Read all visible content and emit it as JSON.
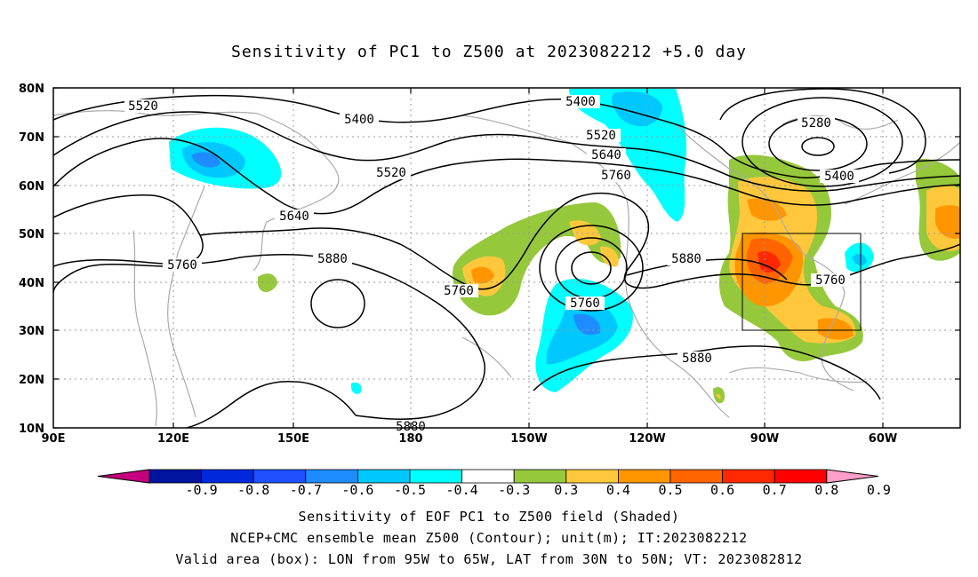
{
  "title": "Sensitivity of PC1 to Z500 at 2023082212 +5.0 day",
  "axes": {
    "lat_ticks": [
      "80N",
      "70N",
      "60N",
      "50N",
      "40N",
      "30N",
      "20N",
      "10N"
    ],
    "lon_ticks": [
      "90E",
      "120E",
      "150E",
      "180",
      "150W",
      "120W",
      "90W",
      "60W"
    ]
  },
  "valid_box": {
    "lon_from": "95W",
    "lon_to": "65W",
    "lat_from": "30N",
    "lat_to": "50N"
  },
  "contour_labels": [
    "5520",
    "5400",
    "5400",
    "5280",
    "5520",
    "5640",
    "5760",
    "5520",
    "5400",
    "5640",
    "5760",
    "5880",
    "5760",
    "5760",
    "5880",
    "5760",
    "5880",
    "5880"
  ],
  "colorbar": {
    "labels": [
      "-0.9",
      "-0.8",
      "-0.7",
      "-0.6",
      "-0.5",
      "-0.4",
      "-0.3",
      "0.3",
      "0.4",
      "0.5",
      "0.6",
      "0.7",
      "0.8",
      "0.9"
    ],
    "colors": [
      "#c4007c",
      "#0014a0",
      "#0028dc",
      "#1e50ff",
      "#1e8cff",
      "#00c8ff",
      "#00ffff",
      "#ffffff",
      "#96c83c",
      "#ffc83c",
      "#ff9600",
      "#ff6400",
      "#ff2800",
      "#ff0000",
      "#ff9ec8"
    ]
  },
  "captions": [
    "Sensitivity of EOF PC1 to Z500 field (Shaded)",
    "NCEP+CMC ensemble mean Z500 (Contour); unit(m); IT:2023082212",
    "Valid area (box): LON from 95W to 65W, LAT from 30N to 50N; VT: 2023082812"
  ]
}
